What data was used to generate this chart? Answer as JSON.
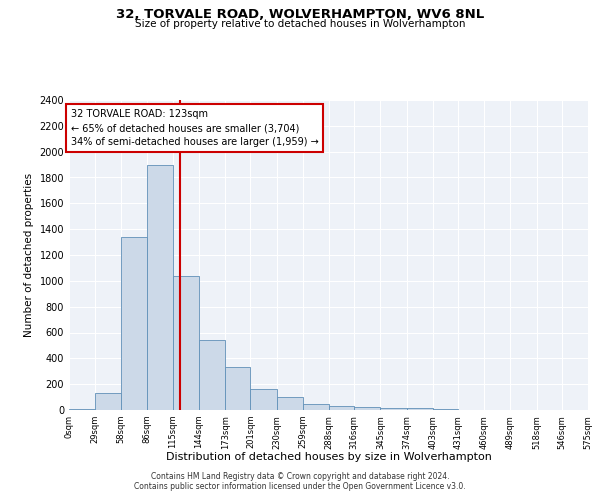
{
  "title": "32, TORVALE ROAD, WOLVERHAMPTON, WV6 8NL",
  "subtitle": "Size of property relative to detached houses in Wolverhampton",
  "xlabel": "Distribution of detached houses by size in Wolverhampton",
  "ylabel": "Number of detached properties",
  "property_size": 123,
  "property_label": "32 TORVALE ROAD: 123sqm",
  "annotation_line1": "← 65% of detached houses are smaller (3,704)",
  "annotation_line2": "34% of semi-detached houses are larger (1,959) →",
  "footer1": "Contains HM Land Registry data © Crown copyright and database right 2024.",
  "footer2": "Contains public sector information licensed under the Open Government Licence v3.0.",
  "bar_color": "#ccd9e8",
  "bar_edge_color": "#6090b8",
  "vline_color": "#cc0000",
  "annotation_box_color": "#cc0000",
  "background_color": "#eef2f8",
  "bins": [
    0,
    29,
    58,
    86,
    115,
    144,
    173,
    201,
    230,
    259,
    288,
    316,
    345,
    374,
    403,
    431,
    460,
    489,
    518,
    546,
    575
  ],
  "bin_labels": [
    "0sqm",
    "29sqm",
    "58sqm",
    "86sqm",
    "115sqm",
    "144sqm",
    "173sqm",
    "201sqm",
    "230sqm",
    "259sqm",
    "288sqm",
    "316sqm",
    "345sqm",
    "374sqm",
    "403sqm",
    "431sqm",
    "460sqm",
    "489sqm",
    "518sqm",
    "546sqm",
    "575sqm"
  ],
  "counts": [
    5,
    130,
    1340,
    1900,
    1040,
    540,
    335,
    165,
    100,
    50,
    30,
    20,
    15,
    13,
    5,
    0,
    3,
    0,
    0,
    3
  ],
  "ylim": [
    0,
    2400
  ],
  "yticks": [
    0,
    200,
    400,
    600,
    800,
    1000,
    1200,
    1400,
    1600,
    1800,
    2000,
    2200,
    2400
  ]
}
